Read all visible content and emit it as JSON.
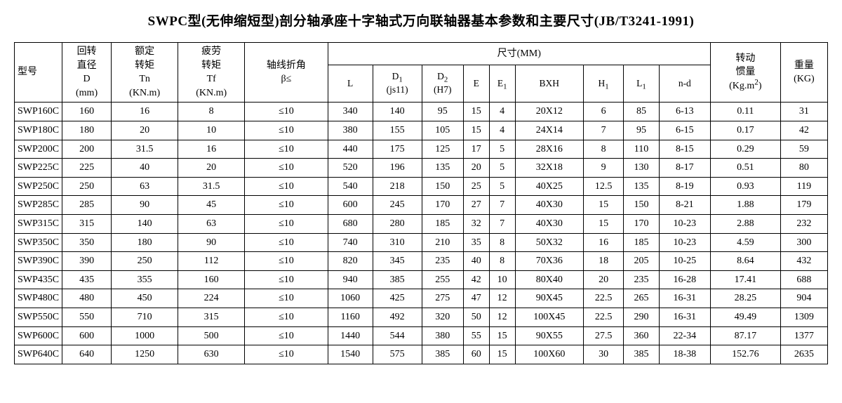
{
  "title": "SWPC型(无伸缩短型)剖分轴承座十字轴式万向联轴器基本参数和主要尺寸(JB/T3241-1991)",
  "headers": {
    "model": "型号",
    "diameter": "回转\n直径\nD\n(mm)",
    "tn": "额定\n转矩\nTn\n(KN.m)",
    "tf": "疲劳\n转矩\nTf\n(KN.m)",
    "beta": "轴线折角\nβ≤",
    "dims_group": "尺寸(MM)",
    "L": "L",
    "D1": "D₁\n(js11)",
    "D2": "D₂\n(H7)",
    "E": "E",
    "E1": "E₁",
    "BXH": "BXH",
    "H1": "H₁",
    "L1": "L₁",
    "nd": "n-d",
    "inertia": "转动\n惯量\n(Kg.m²)",
    "weight": "重量\n(KG)"
  },
  "rows": [
    [
      "SWP160C",
      "160",
      "16",
      "8",
      "≤10",
      "340",
      "140",
      "95",
      "15",
      "4",
      "20X12",
      "6",
      "85",
      "6-13",
      "0.11",
      "31"
    ],
    [
      "SWP180C",
      "180",
      "20",
      "10",
      "≤10",
      "380",
      "155",
      "105",
      "15",
      "4",
      "24X14",
      "7",
      "95",
      "6-15",
      "0.17",
      "42"
    ],
    [
      "SWP200C",
      "200",
      "31.5",
      "16",
      "≤10",
      "440",
      "175",
      "125",
      "17",
      "5",
      "28X16",
      "8",
      "110",
      "8-15",
      "0.29",
      "59"
    ],
    [
      "SWP225C",
      "225",
      "40",
      "20",
      "≤10",
      "520",
      "196",
      "135",
      "20",
      "5",
      "32X18",
      "9",
      "130",
      "8-17",
      "0.51",
      "80"
    ],
    [
      "SWP250C",
      "250",
      "63",
      "31.5",
      "≤10",
      "540",
      "218",
      "150",
      "25",
      "5",
      "40X25",
      "12.5",
      "135",
      "8-19",
      "0.93",
      "119"
    ],
    [
      "SWP285C",
      "285",
      "90",
      "45",
      "≤10",
      "600",
      "245",
      "170",
      "27",
      "7",
      "40X30",
      "15",
      "150",
      "8-21",
      "1.88",
      "179"
    ],
    [
      "SWP315C",
      "315",
      "140",
      "63",
      "≤10",
      "680",
      "280",
      "185",
      "32",
      "7",
      "40X30",
      "15",
      "170",
      "10-23",
      "2.88",
      "232"
    ],
    [
      "SWP350C",
      "350",
      "180",
      "90",
      "≤10",
      "740",
      "310",
      "210",
      "35",
      "8",
      "50X32",
      "16",
      "185",
      "10-23",
      "4.59",
      "300"
    ],
    [
      "SWP390C",
      "390",
      "250",
      "112",
      "≤10",
      "820",
      "345",
      "235",
      "40",
      "8",
      "70X36",
      "18",
      "205",
      "10-25",
      "8.64",
      "432"
    ],
    [
      "SWP435C",
      "435",
      "355",
      "160",
      "≤10",
      "940",
      "385",
      "255",
      "42",
      "10",
      "80X40",
      "20",
      "235",
      "16-28",
      "17.41",
      "688"
    ],
    [
      "SWP480C",
      "480",
      "450",
      "224",
      "≤10",
      "1060",
      "425",
      "275",
      "47",
      "12",
      "90X45",
      "22.5",
      "265",
      "16-31",
      "28.25",
      "904"
    ],
    [
      "SWP550C",
      "550",
      "710",
      "315",
      "≤10",
      "1160",
      "492",
      "320",
      "50",
      "12",
      "100X45",
      "22.5",
      "290",
      "16-31",
      "49.49",
      "1309"
    ],
    [
      "SWP600C",
      "600",
      "1000",
      "500",
      "≤10",
      "1440",
      "544",
      "380",
      "55",
      "15",
      "90X55",
      "27.5",
      "360",
      "22-34",
      "87.17",
      "1377"
    ],
    [
      "SWP640C",
      "640",
      "1250",
      "630",
      "≤10",
      "1540",
      "575",
      "385",
      "60",
      "15",
      "100X60",
      "30",
      "385",
      "18-38",
      "152.76",
      "2635"
    ]
  ],
  "styling": {
    "border_color": "#000000",
    "background_color": "#ffffff",
    "text_color": "#000000",
    "title_fontsize": 19,
    "cell_fontsize": 14,
    "font_family": "SimSun"
  }
}
